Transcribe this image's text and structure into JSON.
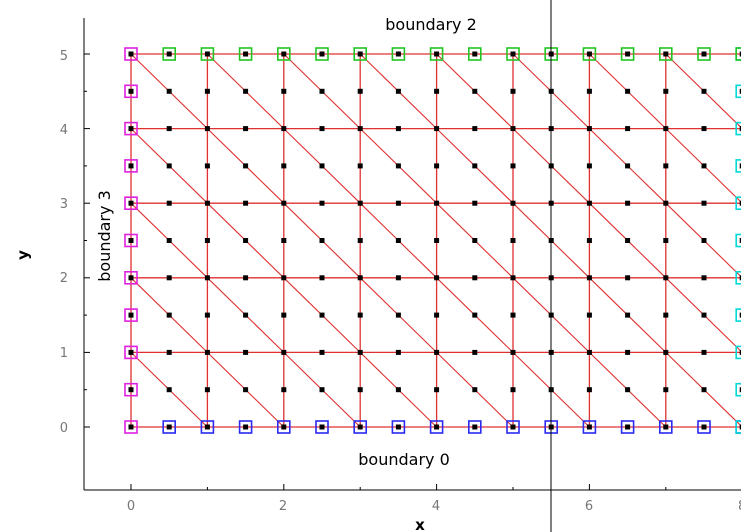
{
  "chart_data": {
    "type": "scatter",
    "title": "",
    "xlabel": "x",
    "ylabel": "y",
    "xlim": [
      -0.55,
      8.0
    ],
    "ylim": [
      -0.85,
      5.5
    ],
    "x_ticks": [
      "0",
      "2",
      "4",
      "6",
      "8"
    ],
    "y_ticks": [
      "0",
      "1",
      "2",
      "3",
      "4",
      "5"
    ],
    "grid": false,
    "mesh": {
      "element": "triangle",
      "x_min": 0,
      "x_max": 8,
      "y_min": 0,
      "y_max": 5,
      "cells_x": 8,
      "cells_y": 5,
      "node_spacing": 0.5,
      "edge_color": "#e03030"
    },
    "annotations": [
      {
        "text": "boundary 2",
        "x": 4.0,
        "y": 5.35
      },
      {
        "text": "boundary 0",
        "x": 3.7,
        "y": -0.45
      },
      {
        "text": "boundary 3",
        "x": -0.3,
        "y": 2.6,
        "rotation": -90
      }
    ],
    "boundary_markers": [
      {
        "boundary": "boundary 0",
        "color": "#2a2af0",
        "side": "bottom"
      },
      {
        "boundary": "boundary 1",
        "color": "#00d8d8",
        "side": "right"
      },
      {
        "boundary": "boundary 2",
        "color": "#22c422",
        "side": "top"
      },
      {
        "boundary": "boundary 3",
        "color": "#e020e0",
        "side": "left"
      }
    ],
    "node_color": "#000000",
    "cursor_line_x": 5.53
  }
}
